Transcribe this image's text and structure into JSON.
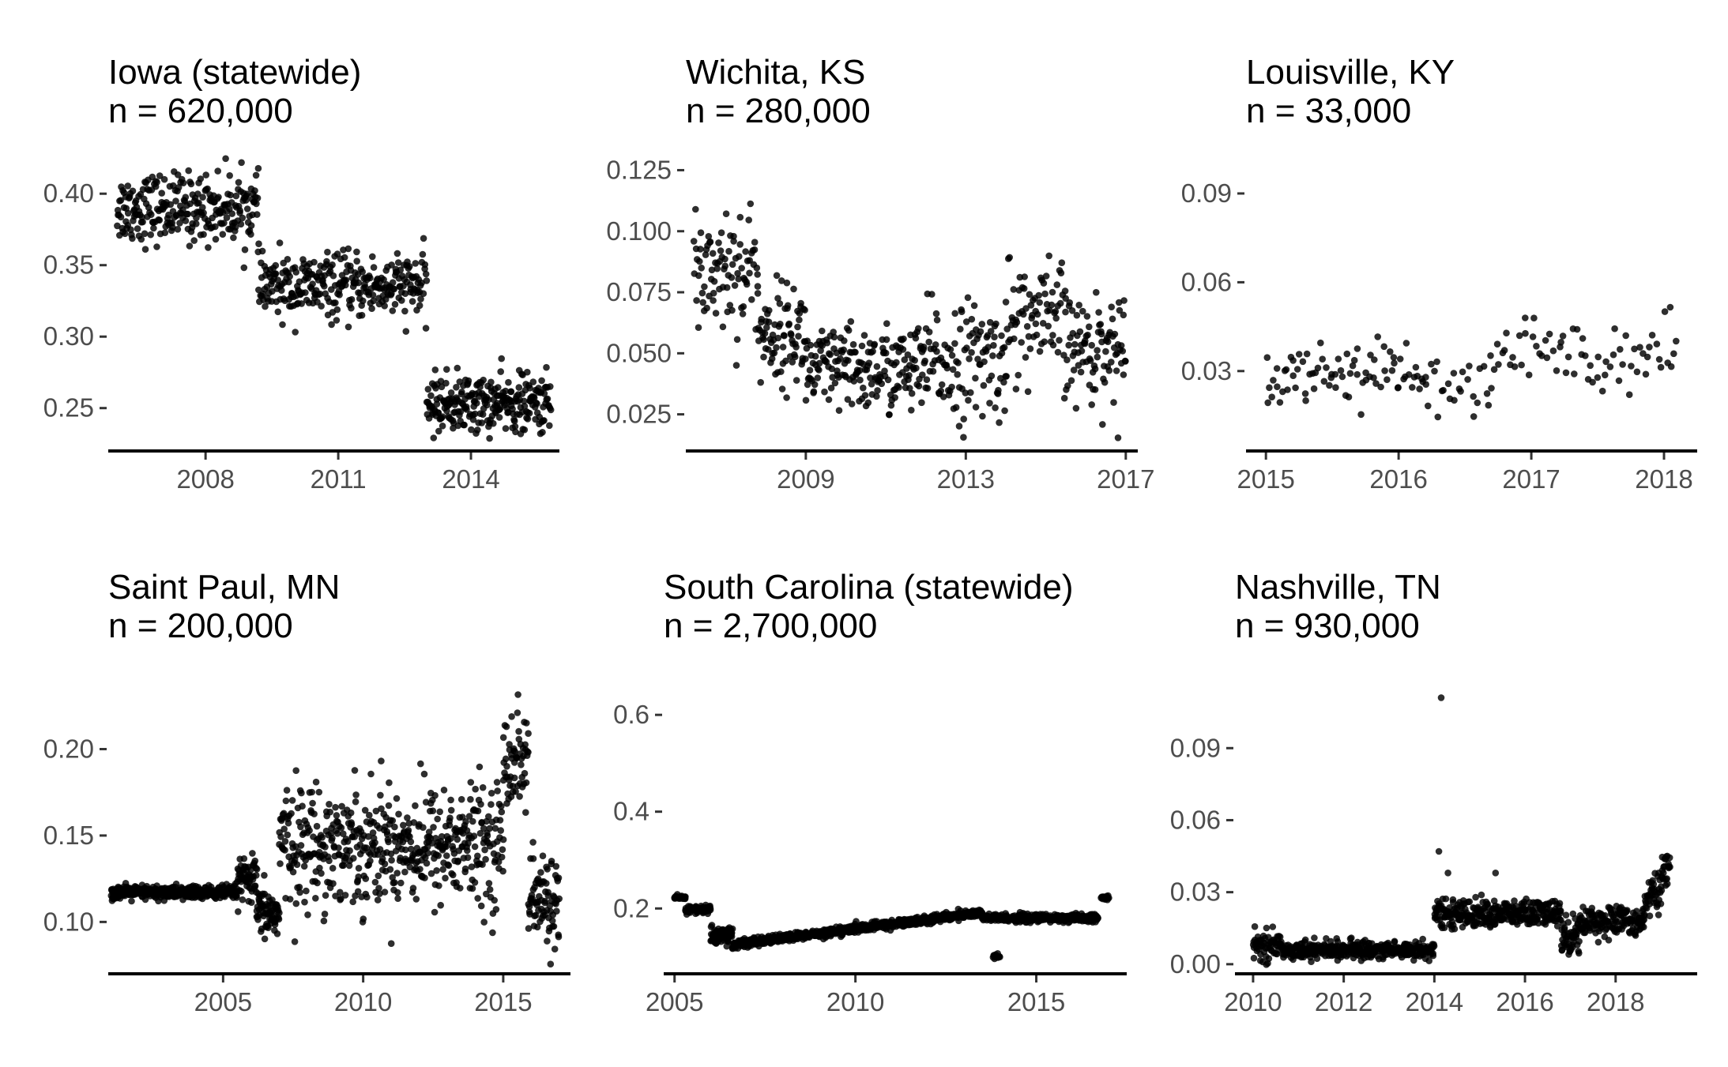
{
  "figure": {
    "panel_count": 6,
    "layout": "2 rows x 3 columns",
    "point_color": "#000000",
    "axis_color": "#000000",
    "tick_label_color": "#4d4d4d",
    "background": "#ffffff"
  },
  "chart_data": [
    {
      "type": "scatter",
      "title": "Iowa (statewide)",
      "subtitle": "n = 620,000",
      "xlim": [
        2005.8,
        2016.0
      ],
      "ylim": [
        0.22,
        0.425
      ],
      "xticks": [
        2008,
        2011,
        2014
      ],
      "xtick_labels": [
        "2008",
        "2011",
        "2014"
      ],
      "yticks": [
        0.25,
        0.3,
        0.35,
        0.4
      ],
      "ytick_labels": [
        "0.25",
        "0.30",
        "0.35",
        "0.40"
      ],
      "grid": false,
      "legend": "none",
      "segments": [
        {
          "x_start": 2006.0,
          "x_end": 2009.2,
          "mean": 0.39,
          "spread": 0.012,
          "n_points": 260
        },
        {
          "x_start": 2009.2,
          "x_end": 2013.0,
          "mean": 0.335,
          "spread": 0.011,
          "n_points": 300
        },
        {
          "x_start": 2013.0,
          "x_end": 2015.8,
          "mean": 0.253,
          "spread": 0.01,
          "n_points": 260
        }
      ]
    },
    {
      "type": "scatter",
      "title": "Wichita, KS",
      "subtitle": "n = 280,000",
      "xlim": [
        2006.0,
        2017.3
      ],
      "ylim": [
        0.01,
        0.13
      ],
      "xticks": [
        2009,
        2013,
        2017
      ],
      "xtick_labels": [
        "2009",
        "2013",
        "2017"
      ],
      "yticks": [
        0.025,
        0.05,
        0.075,
        0.1,
        0.125
      ],
      "ytick_labels": [
        "0.025",
        "0.050",
        "0.075",
        "0.100",
        "0.125"
      ],
      "grid": false,
      "legend": "none",
      "segments": [
        {
          "x_start": 2006.2,
          "x_end": 2007.8,
          "mean": 0.085,
          "spread": 0.014,
          "n_points": 90
        },
        {
          "x_start": 2007.8,
          "x_end": 2009.0,
          "mean": 0.058,
          "spread": 0.01,
          "n_points": 80
        },
        {
          "x_start": 2009.0,
          "x_end": 2012.0,
          "mean": 0.043,
          "spread": 0.009,
          "n_points": 190
        },
        {
          "x_start": 2012.0,
          "x_end": 2014.0,
          "mean": 0.047,
          "spread": 0.012,
          "n_points": 110
        },
        {
          "x_start": 2014.0,
          "x_end": 2015.5,
          "mean": 0.063,
          "spread": 0.012,
          "n_points": 80
        },
        {
          "x_start": 2015.5,
          "x_end": 2017.0,
          "mean": 0.052,
          "spread": 0.011,
          "n_points": 90
        }
      ]
    },
    {
      "type": "scatter",
      "title": "Louisville, KY",
      "subtitle": "n = 33,000",
      "xlim": [
        2014.85,
        2018.25
      ],
      "ylim": [
        0.003,
        0.102
      ],
      "xticks": [
        2015,
        2016,
        2017,
        2018
      ],
      "xtick_labels": [
        "2015",
        "2016",
        "2017",
        "2018"
      ],
      "yticks": [
        0.03,
        0.06,
        0.09
      ],
      "ytick_labels": [
        "0.03",
        "0.06",
        "0.09"
      ],
      "grid": false,
      "legend": "none",
      "segments": [
        {
          "x_start": 2015.0,
          "x_end": 2016.2,
          "mean": 0.03,
          "spread": 0.005,
          "n_points": 80
        },
        {
          "x_start": 2016.2,
          "x_end": 2016.7,
          "mean": 0.022,
          "spread": 0.006,
          "n_points": 25
        },
        {
          "x_start": 2016.7,
          "x_end": 2018.1,
          "mean": 0.036,
          "spread": 0.006,
          "n_points": 70
        }
      ]
    },
    {
      "type": "scatter",
      "title": "Saint Paul, MN",
      "subtitle": "n = 200,000",
      "xlim": [
        2000.9,
        2017.4
      ],
      "ylim": [
        0.07,
        0.245
      ],
      "xticks": [
        2005,
        2010,
        2015
      ],
      "xtick_labels": [
        "2005",
        "2010",
        "2015"
      ],
      "yticks": [
        0.1,
        0.15,
        0.2
      ],
      "ytick_labels": [
        "0.10",
        "0.15",
        "0.20"
      ],
      "grid": false,
      "legend": "none",
      "segments": [
        {
          "x_start": 2001.0,
          "x_end": 2005.5,
          "mean": 0.117,
          "spread": 0.002,
          "n_points": 380
        },
        {
          "x_start": 2005.5,
          "x_end": 2006.2,
          "mean": 0.124,
          "spread": 0.006,
          "n_points": 60
        },
        {
          "x_start": 2006.2,
          "x_end": 2007.0,
          "mean": 0.105,
          "spread": 0.007,
          "n_points": 70
        },
        {
          "x_start": 2007.0,
          "x_end": 2015.0,
          "mean": 0.145,
          "spread": 0.017,
          "n_points": 520
        },
        {
          "x_start": 2015.0,
          "x_end": 2015.9,
          "mean": 0.195,
          "spread": 0.015,
          "n_points": 60
        },
        {
          "x_start": 2015.9,
          "x_end": 2017.0,
          "mean": 0.112,
          "spread": 0.013,
          "n_points": 80
        }
      ]
    },
    {
      "type": "scatter",
      "title": "South Carolina (statewide)",
      "subtitle": "n = 2,700,000",
      "xlim": [
        2004.7,
        2017.5
      ],
      "ylim": [
        0.065,
        0.69
      ],
      "xticks": [
        2005,
        2010,
        2015
      ],
      "xtick_labels": [
        "2005",
        "2010",
        "2015"
      ],
      "yticks": [
        0.2,
        0.4,
        0.6
      ],
      "ytick_labels": [
        "0.2",
        "0.4",
        "0.6"
      ],
      "grid": false,
      "legend": "none",
      "segments": [
        {
          "x_start": 2005.0,
          "x_end": 2005.3,
          "mean": 0.222,
          "spread": 0.002,
          "n_points": 40
        },
        {
          "x_start": 2005.3,
          "x_end": 2006.0,
          "mean": 0.198,
          "spread": 0.004,
          "n_points": 80
        },
        {
          "x_start": 2006.0,
          "x_end": 2006.6,
          "mean": 0.145,
          "spread": 0.01,
          "n_points": 80
        },
        {
          "x_start": 2006.6,
          "x_end": 2013.5,
          "mean_start": 0.125,
          "mean_end": 0.192,
          "spread": 0.004,
          "n_points": 900
        },
        {
          "x_start": 2013.5,
          "x_end": 2016.7,
          "mean": 0.18,
          "spread": 0.004,
          "n_points": 380
        },
        {
          "x_start": 2013.8,
          "x_end": 2014.0,
          "mean": 0.1,
          "spread": 0.004,
          "n_points": 12
        },
        {
          "x_start": 2016.8,
          "x_end": 2017.0,
          "mean": 0.222,
          "spread": 0.002,
          "n_points": 20
        }
      ]
    },
    {
      "type": "scatter",
      "title": "Nashville, TN",
      "subtitle": "n = 930,000",
      "xlim": [
        2009.6,
        2019.8
      ],
      "ylim": [
        -0.004,
        0.122
      ],
      "xticks": [
        2010,
        2012,
        2014,
        2016,
        2018
      ],
      "xtick_labels": [
        "2010",
        "2012",
        "2014",
        "2016",
        "2018"
      ],
      "yticks": [
        0.0,
        0.03,
        0.06,
        0.09
      ],
      "ytick_labels": [
        "0.00",
        "0.03",
        "0.06",
        "0.09"
      ],
      "grid": false,
      "legend": "none",
      "outliers": [
        {
          "x": 2014.15,
          "y": 0.111
        },
        {
          "x": 2014.1,
          "y": 0.047
        },
        {
          "x": 2014.3,
          "y": 0.038
        },
        {
          "x": 2015.35,
          "y": 0.038
        }
      ],
      "segments": [
        {
          "x_start": 2010.0,
          "x_end": 2010.6,
          "mean": 0.008,
          "spread": 0.003,
          "n_points": 60
        },
        {
          "x_start": 2010.6,
          "x_end": 2014.0,
          "mean": 0.006,
          "spread": 0.0018,
          "n_points": 380
        },
        {
          "x_start": 2014.0,
          "x_end": 2016.8,
          "mean": 0.021,
          "spread": 0.0028,
          "n_points": 320
        },
        {
          "x_start": 2016.8,
          "x_end": 2017.2,
          "mean": 0.012,
          "spread": 0.004,
          "n_points": 50
        },
        {
          "x_start": 2017.2,
          "x_end": 2018.6,
          "mean": 0.018,
          "spread": 0.003,
          "n_points": 150
        },
        {
          "x_start": 2018.6,
          "x_end": 2019.2,
          "mean_start": 0.022,
          "mean_end": 0.04,
          "spread": 0.004,
          "n_points": 70
        }
      ]
    }
  ]
}
